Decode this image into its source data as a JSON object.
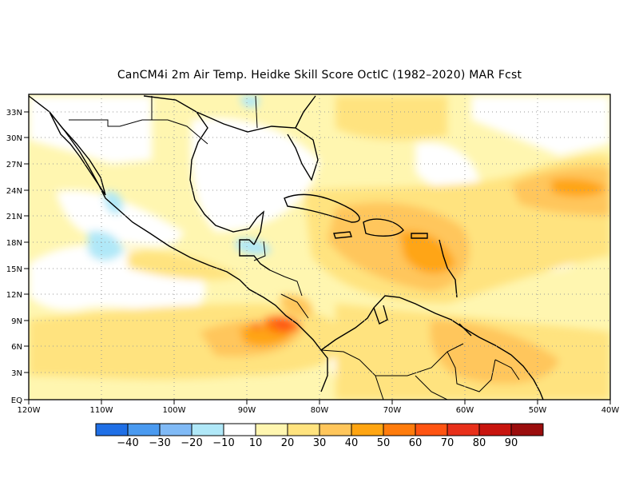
{
  "title": "CanCM4i  2m Air Temp. Heidke Skill Score OctIC (1982–2020) MAR Fcst",
  "map": {
    "lon_range": [
      -120,
      -40
    ],
    "lat_range": [
      0,
      35
    ],
    "lat_ticks": [
      "EQ",
      "3N",
      "6N",
      "9N",
      "12N",
      "15N",
      "18N",
      "21N",
      "24N",
      "27N",
      "30N",
      "33N"
    ],
    "lon_ticks": [
      "120W",
      "110W",
      "100W",
      "90W",
      "80W",
      "70W",
      "60W",
      "50W",
      "40W"
    ],
    "grid": "dotted"
  },
  "colorbar": {
    "colors": [
      "#1f6fe6",
      "#4a9af0",
      "#80baf6",
      "#b0e8f8",
      "#ffffff",
      "#fff6b0",
      "#ffe37f",
      "#ffc65b",
      "#ffa512",
      "#ff7c0c",
      "#ff5412",
      "#e8301a",
      "#c8140e",
      "#9b0d0d"
    ],
    "labels": [
      "−40",
      "−30",
      "−20",
      "−10",
      "10",
      "20",
      "30",
      "40",
      "50",
      "60",
      "70",
      "80",
      "90"
    ]
  }
}
